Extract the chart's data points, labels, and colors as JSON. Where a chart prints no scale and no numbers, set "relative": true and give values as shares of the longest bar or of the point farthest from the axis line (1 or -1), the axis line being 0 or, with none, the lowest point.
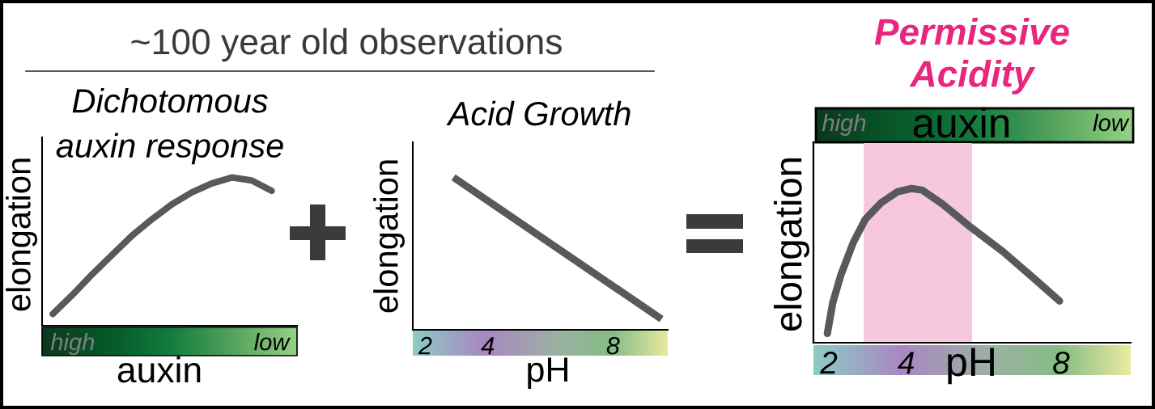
{
  "chart_data": [
    {
      "type": "other",
      "title": "~100 year old observations"
    },
    {
      "type": "line",
      "title": "Dichotomous\nauxin response",
      "xlabel": "auxin",
      "ylabel": "elongation",
      "relative": true,
      "categories": [
        null,
        "high",
        null,
        null,
        null,
        null,
        null,
        null,
        null,
        null,
        null,
        "low"
      ],
      "series": [
        {
          "color": "#595959",
          "values": [
            0.08,
            0.21,
            0.35,
            0.48,
            0.61,
            0.72,
            0.82,
            0.9,
            0.96,
            1.0,
            0.98,
            0.91
          ]
        }
      ]
    },
    {
      "type": "line",
      "title": "Acid Growth",
      "xlabel": "pH",
      "ylabel": "elongation",
      "relative": true,
      "xlim": [
        1.6,
        9.75
      ],
      "xticks": [
        2,
        4,
        8
      ],
      "series": [
        {
          "color": "#595959",
          "x": [
            2.9,
            9.55
          ],
          "values": [
            1,
            0.07
          ]
        }
      ]
    },
    {
      "type": "line",
      "title": "Permissive\nAcidity",
      "xlabel": "pH",
      "ylabel": "elongation",
      "x2label": "auxin",
      "annotations": [
        "high",
        "low"
      ],
      "relative": true,
      "xlim": [
        1.6,
        9.8
      ],
      "xticks": [
        2,
        4,
        8
      ],
      "bands": [
        {
          "axis": "x",
          "from": 2.9,
          "to": 5.7,
          "color": "#f6c8de"
        }
      ],
      "series": [
        {
          "color": "#595959",
          "x": [
            1.96,
            2.1,
            2.31,
            2.63,
            2.94,
            3.36,
            3.78,
            4.13,
            4.41,
            4.93,
            5.66,
            6.5,
            7.33,
            7.96
          ],
          "values": [
            0.06,
            0.26,
            0.44,
            0.65,
            0.8,
            0.91,
            0.98,
            1.0,
            0.99,
            0.9,
            0.75,
            0.59,
            0.41,
            0.27
          ]
        }
      ]
    }
  ]
}
